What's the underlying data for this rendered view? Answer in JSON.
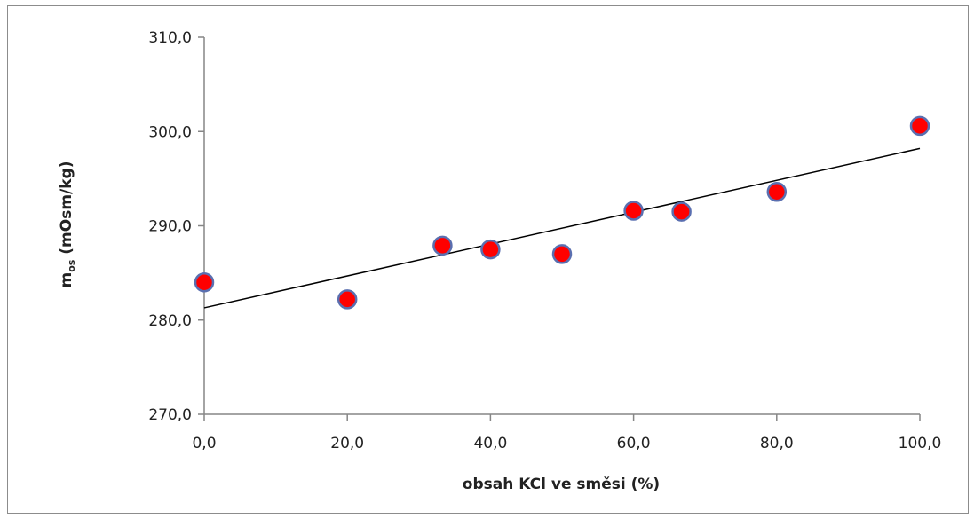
{
  "chart_data": {
    "type": "scatter",
    "xlabel": "obsah KCl ve směsi (%)",
    "ylabel": {
      "main": "m",
      "subscript": "os",
      "rest": " (mOsm/kg)"
    },
    "xlim": [
      0,
      100
    ],
    "ylim": [
      270,
      310
    ],
    "x_ticks": [
      0,
      20,
      40,
      60,
      80,
      100
    ],
    "x_tick_labels": [
      "0,0",
      "20,0",
      "40,0",
      "60,0",
      "80,0",
      "100,0"
    ],
    "y_ticks": [
      270,
      280,
      290,
      300,
      310
    ],
    "y_tick_labels": [
      "270,0",
      "280,0",
      "290,0",
      "300,0",
      "310,0"
    ],
    "grid": false,
    "series": [
      {
        "points": [
          {
            "x": 0,
            "y": 284.0
          },
          {
            "x": 20,
            "y": 282.2
          },
          {
            "x": 33.3,
            "y": 287.9
          },
          {
            "x": 40,
            "y": 287.5
          },
          {
            "x": 50,
            "y": 287.0
          },
          {
            "x": 60,
            "y": 291.6
          },
          {
            "x": 66.7,
            "y": 291.5
          },
          {
            "x": 80,
            "y": 293.6
          },
          {
            "x": 100,
            "y": 300.6
          }
        ],
        "marker_color": "#ff0000",
        "marker_edge_color": "#5a6fb0"
      }
    ],
    "trendline": {
      "type": "linear",
      "from": {
        "x": 0,
        "y": 281.3
      },
      "to": {
        "x": 100,
        "y": 298.2
      },
      "color": "#000000"
    }
  }
}
